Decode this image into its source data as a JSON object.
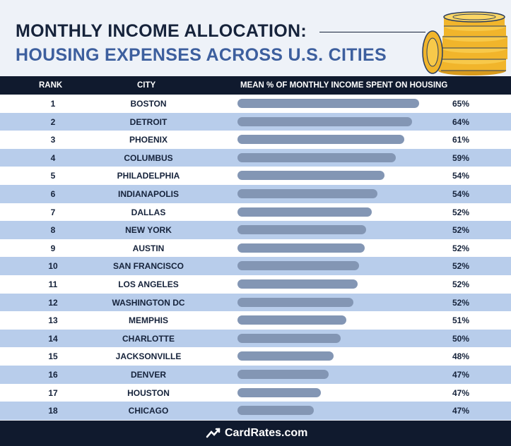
{
  "title_line1": "MONTHLY INCOME ALLOCATION:",
  "title_line2": "HOUSING EXPENSES ACROSS U.S. CITIES",
  "columns": {
    "rank": "RANK",
    "city": "CITY",
    "metric": "MEAN % OF MONTHLY INCOME SPENT ON HOUSING"
  },
  "chart_data": {
    "type": "bar",
    "orientation": "horizontal",
    "title": "MONTHLY INCOME ALLOCATION: HOUSING EXPENSES ACROSS U.S. CITIES",
    "categories": [
      "BOSTON",
      "DETROIT",
      "PHOENIX",
      "COLUMBUS",
      "PHILADELPHIA",
      "INDIANAPOLIS",
      "DALLAS",
      "NEW YORK",
      "AUSTIN",
      "SAN FRANCISCO",
      "LOS ANGELES",
      "WASHINGTON DC",
      "MEMPHIS",
      "CHARLOTTE",
      "JACKSONVILLE",
      "DENVER",
      "HOUSTON",
      "CHICAGO"
    ],
    "ranks": [
      "1",
      "2",
      "3",
      "4",
      "5",
      "6",
      "7",
      "8",
      "9",
      "10",
      "11",
      "12",
      "13",
      "14",
      "15",
      "16",
      "17",
      "18"
    ],
    "value_labels": [
      "65%",
      "64%",
      "61%",
      "59%",
      "54%",
      "54%",
      "52%",
      "52%",
      "52%",
      "52%",
      "52%",
      "52%",
      "51%",
      "50%",
      "48%",
      "47%",
      "47%",
      "47%"
    ],
    "bar_fill": [
      1.0,
      0.96,
      0.92,
      0.87,
      0.81,
      0.77,
      0.74,
      0.71,
      0.7,
      0.67,
      0.66,
      0.64,
      0.6,
      0.57,
      0.53,
      0.5,
      0.46,
      0.42
    ],
    "bar_color": "#8396b4",
    "row_colors": [
      "#ffffff",
      "#b8cdeb"
    ]
  },
  "footer": {
    "brand": "CardRates.com"
  }
}
